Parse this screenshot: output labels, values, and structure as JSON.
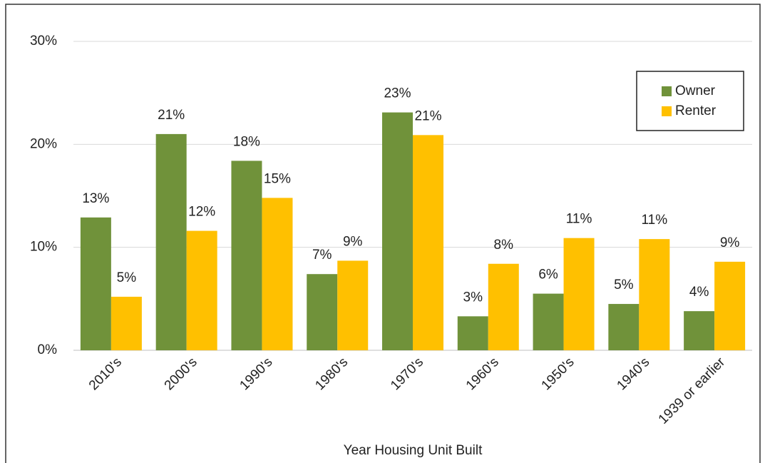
{
  "chart_data": {
    "type": "bar",
    "x_label": "Year Housing Unit Built",
    "categories": [
      "2010's",
      "2000's",
      "1990's",
      "1980's",
      "1970's",
      "1960's",
      "1950's",
      "1940's",
      "1939 or earlier"
    ],
    "series": [
      {
        "name": "Owner",
        "color": "#70923a",
        "values": [
          12.9,
          21.0,
          18.4,
          7.4,
          23.1,
          3.3,
          5.5,
          4.5,
          3.8
        ],
        "value_labels": [
          "13%",
          "21%",
          "18%",
          "7%",
          "23%",
          "3%",
          "6%",
          "5%",
          "4%"
        ]
      },
      {
        "name": "Renter",
        "color": "#ffc000",
        "values": [
          5.2,
          11.6,
          14.8,
          8.7,
          20.9,
          8.4,
          10.9,
          10.8,
          8.6
        ],
        "value_labels": [
          "5%",
          "12%",
          "15%",
          "9%",
          "21%",
          "8%",
          "11%",
          "11%",
          "9%"
        ]
      }
    ],
    "ylim": [
      0,
      30
    ],
    "yticks": [
      {
        "value": 0,
        "label": "0%"
      },
      {
        "value": 10,
        "label": "10%"
      },
      {
        "value": 20,
        "label": "20%"
      },
      {
        "value": 30,
        "label": "30%"
      }
    ],
    "grid": true,
    "legend": "top-right"
  }
}
